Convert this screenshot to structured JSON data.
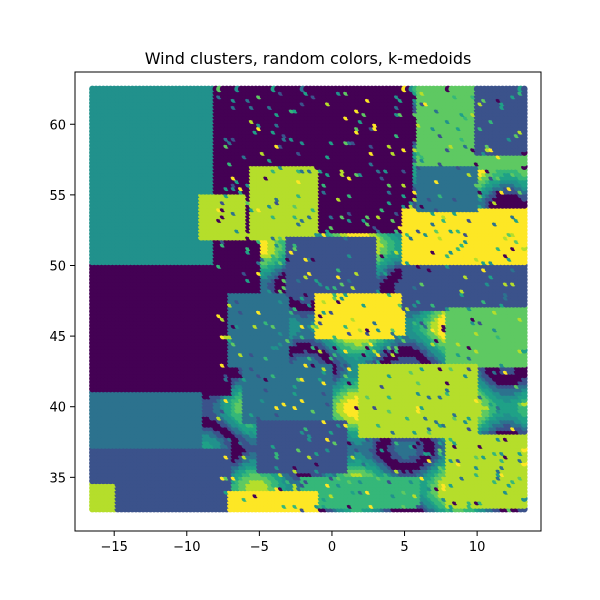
{
  "chart_data": {
    "type": "scatter",
    "title": "Wind clusters, random colors, k-medoids",
    "xlabel": "",
    "ylabel": "",
    "xlim": [
      -17.7,
      14.4
    ],
    "ylim": [
      31.2,
      63.7
    ],
    "x_ticks": [
      -15,
      -10,
      -5,
      0,
      5,
      10
    ],
    "y_ticks": [
      35,
      40,
      45,
      50,
      55,
      60
    ],
    "grid": false,
    "legend": "none",
    "grid_points": {
      "lon_min": -16.5,
      "lon_max": 13.25,
      "lat_min": 32.75,
      "lat_max": 62.5,
      "resolution": 0.25
    },
    "clusters": [
      {
        "id": 0,
        "color": "#440154"
      },
      {
        "id": 1,
        "color": "#3b528b"
      },
      {
        "id": 2,
        "color": "#2c728e"
      },
      {
        "id": 3,
        "color": "#21918c"
      },
      {
        "id": 4,
        "color": "#1fa187"
      },
      {
        "id": 5,
        "color": "#35b779"
      },
      {
        "id": 6,
        "color": "#5ec962"
      },
      {
        "id": 7,
        "color": "#b5de2b"
      },
      {
        "id": 8,
        "color": "#fde725"
      }
    ],
    "regions": [
      {
        "cluster": 3,
        "lon": [
          -16.5,
          -6.0
        ],
        "lat": [
          50.0,
          62.5
        ]
      },
      {
        "cluster": 0,
        "lon": [
          -16.5,
          -7.0
        ],
        "lat": [
          41.0,
          50.0
        ]
      },
      {
        "cluster": 2,
        "lon": [
          -16.5,
          -9.0
        ],
        "lat": [
          37.0,
          41.0
        ]
      },
      {
        "cluster": 1,
        "lon": [
          -16.5,
          -7.0
        ],
        "lat": [
          32.75,
          37.0
        ]
      },
      {
        "cluster": 0,
        "lon": [
          -8.0,
          3.0
        ],
        "lat": [
          55.0,
          62.5
        ]
      },
      {
        "cluster": 0,
        "lon": [
          -6.0,
          5.5
        ],
        "lat": [
          52.5,
          62.5
        ]
      },
      {
        "cluster": 0,
        "lon": [
          -8.0,
          -5.0
        ],
        "lat": [
          48.0,
          52.0
        ]
      },
      {
        "cluster": 2,
        "lon": [
          -7.0,
          -3.0
        ],
        "lat": [
          43.0,
          48.0
        ]
      },
      {
        "cluster": 7,
        "lon": [
          -5.5,
          -1.0
        ],
        "lat": [
          52.0,
          57.0
        ]
      },
      {
        "cluster": 7,
        "lon": [
          -9.0,
          -6.0
        ],
        "lat": [
          52.0,
          55.0
        ]
      },
      {
        "cluster": 1,
        "lon": [
          -3.0,
          3.0
        ],
        "lat": [
          48.0,
          52.0
        ]
      },
      {
        "cluster": 8,
        "lon": [
          -1.0,
          5.0
        ],
        "lat": [
          45.0,
          48.0
        ]
      },
      {
        "cluster": 8,
        "lon": [
          5.0,
          13.25
        ],
        "lat": [
          50.0,
          54.0
        ]
      },
      {
        "cluster": 1,
        "lon": [
          5.0,
          13.25
        ],
        "lat": [
          47.0,
          50.0
        ]
      },
      {
        "cluster": 6,
        "lon": [
          8.0,
          13.25
        ],
        "lat": [
          43.0,
          47.0
        ]
      },
      {
        "cluster": 7,
        "lon": [
          2.0,
          10.0
        ],
        "lat": [
          38.0,
          43.0
        ]
      },
      {
        "cluster": 2,
        "lon": [
          -6.0,
          0.0
        ],
        "lat": [
          39.0,
          43.0
        ]
      },
      {
        "cluster": 1,
        "lon": [
          -5.0,
          1.0
        ],
        "lat": [
          35.5,
          39.0
        ]
      },
      {
        "cluster": 5,
        "lon": [
          -2.0,
          6.0
        ],
        "lat": [
          33.0,
          35.0
        ]
      },
      {
        "cluster": 7,
        "lon": [
          8.0,
          13.25
        ],
        "lat": [
          33.0,
          38.0
        ]
      },
      {
        "cluster": 6,
        "lon": [
          6.0,
          13.25
        ],
        "lat": [
          57.0,
          62.5
        ]
      },
      {
        "cluster": 8,
        "lon": [
          12.0,
          13.25
        ],
        "lat": [
          61.0,
          62.5
        ]
      },
      {
        "cluster": 1,
        "lon": [
          10.0,
          13.25
        ],
        "lat": [
          58.0,
          62.5
        ]
      },
      {
        "cluster": 2,
        "lon": [
          6.0,
          10.0
        ],
        "lat": [
          54.0,
          57.0
        ]
      },
      {
        "cluster": 7,
        "lon": [
          -16.5,
          -15.0
        ],
        "lat": [
          32.75,
          34.5
        ]
      },
      {
        "cluster": 8,
        "lon": [
          -7.0,
          -1.0
        ],
        "lat": [
          32.75,
          34.0
        ]
      }
    ]
  }
}
